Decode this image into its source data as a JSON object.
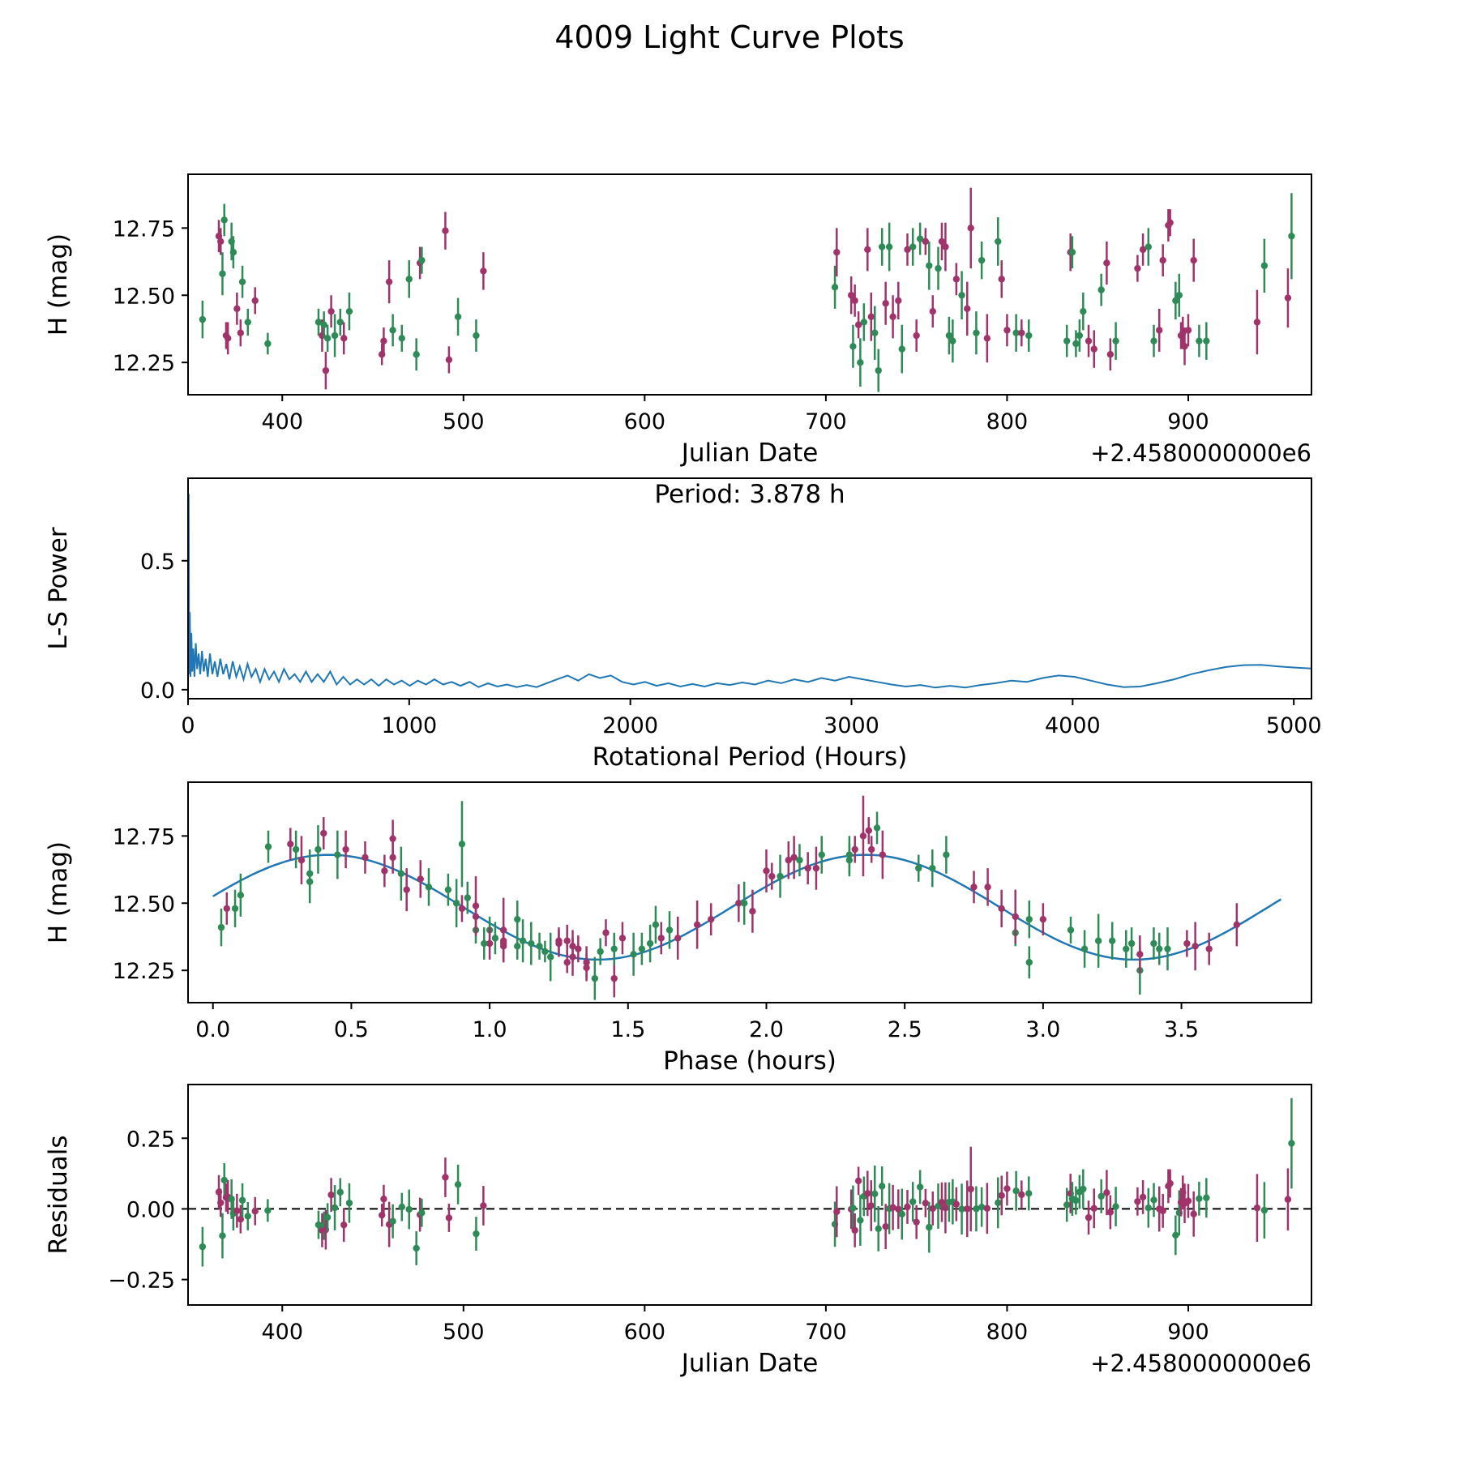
{
  "title": "4009 Light Curve Plots",
  "colors": {
    "series": [
      "#2e8b57",
      "#a1336b"
    ],
    "fit_line": "#1f77b4",
    "periodogram_line": "#1f77b4",
    "text": "#000000"
  },
  "observations": {
    "columns": [
      "jd_minus_2458000",
      "phase_hours",
      "h_mag",
      "h_err",
      "series_index"
    ],
    "series_names": [
      "green",
      "purple"
    ],
    "points": [
      [
        356.0,
        0.03,
        12.41,
        0.07,
        0
      ],
      [
        365.0,
        0.28,
        12.72,
        0.06,
        1
      ],
      [
        366.0,
        2.32,
        12.7,
        0.05,
        1
      ],
      [
        367.0,
        0.35,
        12.58,
        0.08,
        0
      ],
      [
        368.0,
        2.4,
        12.78,
        0.06,
        0
      ],
      [
        369.0,
        1.25,
        12.35,
        0.05,
        1
      ],
      [
        370.0,
        1.3,
        12.34,
        0.06,
        1
      ],
      [
        372.0,
        0.3,
        12.7,
        0.07,
        0
      ],
      [
        373.0,
        2.3,
        12.66,
        0.06,
        0
      ],
      [
        375.0,
        0.95,
        12.45,
        0.06,
        1
      ],
      [
        377.0,
        1.05,
        12.36,
        0.05,
        1
      ],
      [
        378.0,
        0.85,
        12.55,
        0.06,
        0
      ],
      [
        381.0,
        1.0,
        12.4,
        0.05,
        0
      ],
      [
        385.0,
        0.9,
        12.48,
        0.05,
        1
      ],
      [
        392.0,
        1.2,
        12.32,
        0.04,
        0
      ],
      [
        420.0,
        0.95,
        12.4,
        0.05,
        0
      ],
      [
        422.0,
        1.0,
        12.35,
        0.06,
        1
      ],
      [
        423.0,
        2.9,
        12.39,
        0.05,
        0
      ],
      [
        424.0,
        1.45,
        12.22,
        0.07,
        1
      ],
      [
        425.0,
        1.1,
        12.34,
        0.05,
        0
      ],
      [
        427.0,
        3.0,
        12.44,
        0.06,
        1
      ],
      [
        429.0,
        1.15,
        12.35,
        0.08,
        0
      ],
      [
        432.0,
        3.1,
        12.4,
        0.05,
        0
      ],
      [
        434.0,
        1.05,
        12.34,
        0.06,
        1
      ],
      [
        437.0,
        2.95,
        12.44,
        0.07,
        0
      ],
      [
        455.0,
        1.28,
        12.28,
        0.04,
        1
      ],
      [
        456.0,
        1.32,
        12.33,
        0.05,
        1
      ],
      [
        459.0,
        0.7,
        12.55,
        0.08,
        1
      ],
      [
        461.0,
        1.02,
        12.37,
        0.06,
        0
      ],
      [
        466.0,
        1.18,
        12.34,
        0.05,
        0
      ],
      [
        470.0,
        0.78,
        12.56,
        0.07,
        0
      ],
      [
        474.0,
        2.95,
        12.28,
        0.06,
        0
      ],
      [
        476.0,
        0.62,
        12.62,
        0.06,
        1
      ],
      [
        477.0,
        2.55,
        12.63,
        0.05,
        0
      ],
      [
        490.0,
        0.65,
        12.74,
        0.07,
        1
      ],
      [
        492.0,
        1.35,
        12.26,
        0.05,
        1
      ],
      [
        497.0,
        1.6,
        12.42,
        0.07,
        0
      ],
      [
        507.0,
        0.98,
        12.35,
        0.06,
        0
      ],
      [
        511.0,
        0.75,
        12.59,
        0.07,
        1
      ],
      [
        705.0,
        0.1,
        12.53,
        0.08,
        0
      ],
      [
        706.0,
        0.32,
        12.66,
        0.09,
        1
      ],
      [
        714.0,
        1.9,
        12.5,
        0.07,
        1
      ],
      [
        715.0,
        1.52,
        12.31,
        0.08,
        0
      ],
      [
        716.0,
        0.05,
        12.48,
        0.06,
        1
      ],
      [
        718.0,
        1.42,
        12.39,
        0.05,
        1
      ],
      [
        719.0,
        3.35,
        12.25,
        0.09,
        0
      ],
      [
        721.0,
        1.65,
        12.4,
        0.07,
        0
      ],
      [
        723.0,
        2.1,
        12.67,
        0.08,
        1
      ],
      [
        725.0,
        1.75,
        12.42,
        0.09,
        1
      ],
      [
        727.0,
        3.2,
        12.36,
        0.1,
        0
      ],
      [
        729.0,
        1.38,
        12.22,
        0.08,
        0
      ],
      [
        731.0,
        2.65,
        12.68,
        0.07,
        0
      ],
      [
        733.0,
        1.95,
        12.47,
        0.08,
        1
      ],
      [
        735.0,
        0.45,
        12.68,
        0.09,
        0
      ],
      [
        737.0,
        3.7,
        12.42,
        0.08,
        1
      ],
      [
        740.0,
        2.85,
        12.48,
        0.07,
        1
      ],
      [
        742.0,
        1.22,
        12.3,
        0.09,
        0
      ],
      [
        745.0,
        0.55,
        12.67,
        0.06,
        1
      ],
      [
        748.0,
        2.2,
        12.68,
        0.07,
        0
      ],
      [
        750.0,
        1.05,
        12.35,
        0.06,
        1
      ],
      [
        752.0,
        0.2,
        12.71,
        0.06,
        0
      ],
      [
        755.0,
        2.38,
        12.7,
        0.05,
        1
      ],
      [
        757.0,
        0.35,
        12.61,
        0.09,
        0
      ],
      [
        759.0,
        1.8,
        12.44,
        0.06,
        1
      ],
      [
        762.0,
        2.05,
        12.6,
        0.08,
        0
      ],
      [
        764.0,
        0.48,
        12.7,
        0.07,
        1
      ],
      [
        766.0,
        2.42,
        12.68,
        0.09,
        1
      ],
      [
        768.0,
        1.58,
        12.35,
        0.07,
        0
      ],
      [
        770.0,
        3.45,
        12.33,
        0.08,
        0
      ],
      [
        772.0,
        2.75,
        12.56,
        0.06,
        1
      ],
      [
        775.0,
        0.88,
        12.5,
        0.09,
        0
      ],
      [
        778.0,
        2.9,
        12.45,
        0.1,
        1
      ],
      [
        780.0,
        2.35,
        12.75,
        0.15,
        1
      ],
      [
        783.0,
        1.12,
        12.36,
        0.08,
        0
      ],
      [
        786.0,
        2.6,
        12.63,
        0.07,
        0
      ],
      [
        789.0,
        3.55,
        12.34,
        0.09,
        1
      ],
      [
        795.0,
        0.38,
        12.7,
        0.09,
        0
      ],
      [
        797.0,
        2.8,
        12.56,
        0.07,
        1
      ],
      [
        800.0,
        1.48,
        12.37,
        0.06,
        1
      ],
      [
        805.0,
        3.25,
        12.36,
        0.07,
        0
      ],
      [
        808.0,
        1.25,
        12.36,
        0.05,
        1
      ],
      [
        812.0,
        3.4,
        12.35,
        0.06,
        0
      ],
      [
        833.0,
        1.55,
        12.33,
        0.06,
        0
      ],
      [
        835.0,
        2.08,
        12.66,
        0.07,
        1
      ],
      [
        836.0,
        2.12,
        12.66,
        0.06,
        0
      ],
      [
        838.0,
        1.4,
        12.32,
        0.05,
        0
      ],
      [
        840.0,
        3.32,
        12.35,
        0.06,
        0
      ],
      [
        842.0,
        1.1,
        12.44,
        0.07,
        0
      ],
      [
        845.0,
        3.6,
        12.33,
        0.06,
        1
      ],
      [
        848.0,
        1.3,
        12.3,
        0.07,
        1
      ],
      [
        852.0,
        0.92,
        12.52,
        0.06,
        0
      ],
      [
        855.0,
        2.0,
        12.62,
        0.08,
        1
      ],
      [
        857.0,
        1.35,
        12.28,
        0.06,
        1
      ],
      [
        860.0,
        3.15,
        12.33,
        0.07,
        0
      ],
      [
        872.0,
        2.02,
        12.6,
        0.05,
        1
      ],
      [
        875.0,
        0.65,
        12.67,
        0.06,
        1
      ],
      [
        878.0,
        2.3,
        12.68,
        0.07,
        0
      ],
      [
        881.0,
        3.42,
        12.33,
        0.06,
        0
      ],
      [
        884.0,
        1.68,
        12.37,
        0.08,
        1
      ],
      [
        886.0,
        2.15,
        12.63,
        0.06,
        1
      ],
      [
        889.0,
        0.4,
        12.76,
        0.06,
        1
      ],
      [
        890.0,
        2.37,
        12.77,
        0.05,
        1
      ],
      [
        893.0,
        0.08,
        12.48,
        0.07,
        0
      ],
      [
        895.0,
        1.92,
        12.5,
        0.08,
        0
      ],
      [
        896.0,
        3.52,
        12.35,
        0.05,
        1
      ],
      [
        897.0,
        1.28,
        12.36,
        0.06,
        1
      ],
      [
        898.0,
        3.35,
        12.31,
        0.07,
        1
      ],
      [
        900.0,
        1.62,
        12.37,
        0.06,
        1
      ],
      [
        903.0,
        2.18,
        12.63,
        0.08,
        1
      ],
      [
        906.0,
        1.45,
        12.33,
        0.06,
        0
      ],
      [
        910.0,
        3.3,
        12.33,
        0.07,
        0
      ],
      [
        938.0,
        1.05,
        12.4,
        0.12,
        1
      ],
      [
        942.0,
        0.68,
        12.61,
        0.1,
        0
      ],
      [
        955.0,
        0.95,
        12.49,
        0.11,
        1
      ],
      [
        957.0,
        0.9,
        12.72,
        0.16,
        0
      ]
    ]
  },
  "chart_data": [
    {
      "type": "scatter",
      "id": "lightcurve",
      "xlabel": "Julian Date",
      "x_offset_label": "+2.4580000000e6",
      "ylabel": "H (mag)",
      "xlim": [
        348,
        968
      ],
      "ylim": [
        12.13,
        12.95
      ],
      "xticks": [
        400,
        500,
        600,
        700,
        800,
        900
      ],
      "xtick_labels": [
        "400",
        "500",
        "600",
        "700",
        "800",
        "900"
      ],
      "yticks": [
        12.25,
        12.5,
        12.75
      ],
      "ytick_labels": [
        "12.25",
        "12.50",
        "12.75"
      ],
      "grid": false
    },
    {
      "type": "line",
      "id": "periodogram",
      "annotation": "Period: 3.878 h",
      "peak_period_hours": 3.878,
      "xlabel": "Rotational Period (Hours)",
      "ylabel": "L-S Power",
      "xlim": [
        0,
        5080
      ],
      "ylim": [
        -0.035,
        0.82
      ],
      "xticks": [
        0,
        1000,
        2000,
        3000,
        4000,
        5000
      ],
      "xtick_labels": [
        "0",
        "1000",
        "2000",
        "3000",
        "4000",
        "5000"
      ],
      "yticks": [
        0.0,
        0.5
      ],
      "ytick_labels": [
        "0.0",
        "0.5"
      ],
      "grid": false,
      "points": [
        [
          0,
          0.0
        ],
        [
          3,
          0.76
        ],
        [
          5,
          0.06
        ],
        [
          8,
          0.3
        ],
        [
          11,
          0.05
        ],
        [
          15,
          0.22
        ],
        [
          19,
          0.07
        ],
        [
          24,
          0.16
        ],
        [
          29,
          0.05
        ],
        [
          35,
          0.18
        ],
        [
          41,
          0.08
        ],
        [
          48,
          0.14
        ],
        [
          55,
          0.06
        ],
        [
          63,
          0.15
        ],
        [
          71,
          0.07
        ],
        [
          80,
          0.12
        ],
        [
          89,
          0.05
        ],
        [
          99,
          0.14
        ],
        [
          110,
          0.06
        ],
        [
          121,
          0.11
        ],
        [
          133,
          0.05
        ],
        [
          146,
          0.12
        ],
        [
          159,
          0.06
        ],
        [
          173,
          0.1
        ],
        [
          187,
          0.04
        ],
        [
          202,
          0.11
        ],
        [
          218,
          0.05
        ],
        [
          234,
          0.09
        ],
        [
          251,
          0.04
        ],
        [
          269,
          0.1
        ],
        [
          287,
          0.05
        ],
        [
          306,
          0.08
        ],
        [
          326,
          0.03
        ],
        [
          346,
          0.08
        ],
        [
          367,
          0.04
        ],
        [
          389,
          0.07
        ],
        [
          411,
          0.03
        ],
        [
          434,
          0.08
        ],
        [
          458,
          0.04
        ],
        [
          482,
          0.06
        ],
        [
          507,
          0.03
        ],
        [
          533,
          0.07
        ],
        [
          559,
          0.03
        ],
        [
          586,
          0.06
        ],
        [
          614,
          0.03
        ],
        [
          643,
          0.07
        ],
        [
          672,
          0.02
        ],
        [
          702,
          0.05
        ],
        [
          733,
          0.02
        ],
        [
          764,
          0.04
        ],
        [
          796,
          0.02
        ],
        [
          829,
          0.04
        ],
        [
          862,
          0.015
        ],
        [
          896,
          0.04
        ],
        [
          931,
          0.02
        ],
        [
          966,
          0.035
        ],
        [
          1002,
          0.015
        ],
        [
          1039,
          0.035
        ],
        [
          1076,
          0.02
        ],
        [
          1114,
          0.04
        ],
        [
          1153,
          0.02
        ],
        [
          1192,
          0.03
        ],
        [
          1232,
          0.015
        ],
        [
          1273,
          0.03
        ],
        [
          1314,
          0.01
        ],
        [
          1356,
          0.025
        ],
        [
          1399,
          0.012
        ],
        [
          1442,
          0.02
        ],
        [
          1486,
          0.01
        ],
        [
          1531,
          0.018
        ],
        [
          1576,
          0.01
        ],
        [
          1622,
          0.025
        ],
        [
          1669,
          0.04
        ],
        [
          1716,
          0.055
        ],
        [
          1764,
          0.035
        ],
        [
          1813,
          0.06
        ],
        [
          1862,
          0.045
        ],
        [
          1912,
          0.055
        ],
        [
          1963,
          0.03
        ],
        [
          2014,
          0.02
        ],
        [
          2066,
          0.03
        ],
        [
          2119,
          0.015
        ],
        [
          2172,
          0.025
        ],
        [
          2226,
          0.012
        ],
        [
          2281,
          0.022
        ],
        [
          2336,
          0.012
        ],
        [
          2392,
          0.025
        ],
        [
          2449,
          0.018
        ],
        [
          2506,
          0.028
        ],
        [
          2564,
          0.02
        ],
        [
          2623,
          0.035
        ],
        [
          2682,
          0.025
        ],
        [
          2742,
          0.04
        ],
        [
          2803,
          0.03
        ],
        [
          2864,
          0.045
        ],
        [
          2926,
          0.035
        ],
        [
          2989,
          0.05
        ],
        [
          3052,
          0.04
        ],
        [
          3116,
          0.03
        ],
        [
          3181,
          0.02
        ],
        [
          3246,
          0.012
        ],
        [
          3312,
          0.018
        ],
        [
          3379,
          0.008
        ],
        [
          3446,
          0.015
        ],
        [
          3514,
          0.008
        ],
        [
          3583,
          0.018
        ],
        [
          3652,
          0.025
        ],
        [
          3722,
          0.035
        ],
        [
          3793,
          0.03
        ],
        [
          3864,
          0.045
        ],
        [
          3936,
          0.055
        ],
        [
          4009,
          0.05
        ],
        [
          4082,
          0.035
        ],
        [
          4156,
          0.02
        ],
        [
          4231,
          0.01
        ],
        [
          4306,
          0.012
        ],
        [
          4382,
          0.025
        ],
        [
          4459,
          0.04
        ],
        [
          4536,
          0.06
        ],
        [
          4614,
          0.075
        ],
        [
          4693,
          0.088
        ],
        [
          4772,
          0.095
        ],
        [
          4852,
          0.096
        ],
        [
          4932,
          0.09
        ],
        [
          5013,
          0.085
        ],
        [
          5080,
          0.082
        ]
      ]
    },
    {
      "type": "scatter",
      "id": "phase",
      "xlabel": "Phase (hours)",
      "ylabel": "H (mag)",
      "xlim": [
        -0.09,
        3.97
      ],
      "ylim": [
        12.13,
        12.95
      ],
      "xticks": [
        0.0,
        0.5,
        1.0,
        1.5,
        2.0,
        2.5,
        3.0,
        3.5
      ],
      "xtick_labels": [
        "0.0",
        "0.5",
        "1.0",
        "1.5",
        "2.0",
        "2.5",
        "3.0",
        "3.5"
      ],
      "yticks": [
        12.25,
        12.5,
        12.75
      ],
      "ytick_labels": [
        "12.25",
        "12.50",
        "12.75"
      ],
      "grid": false,
      "fit": {
        "mean": 12.485,
        "amplitude": 0.195,
        "period_hours": 3.878,
        "max_phase": 0.42,
        "domain": [
          0,
          3.878
        ]
      }
    },
    {
      "type": "scatter",
      "id": "residuals",
      "xlabel": "Julian Date",
      "x_offset_label": "+2.4580000000e6",
      "ylabel": "Residuals",
      "xlim": [
        348,
        968
      ],
      "ylim": [
        -0.34,
        0.44
      ],
      "xticks": [
        400,
        500,
        600,
        700,
        800,
        900
      ],
      "xtick_labels": [
        "400",
        "500",
        "600",
        "700",
        "800",
        "900"
      ],
      "yticks": [
        -0.25,
        0.0,
        0.25
      ],
      "ytick_labels": [
        "−0.25",
        "0.00",
        "0.25"
      ],
      "zero_line": true,
      "grid": false
    }
  ]
}
